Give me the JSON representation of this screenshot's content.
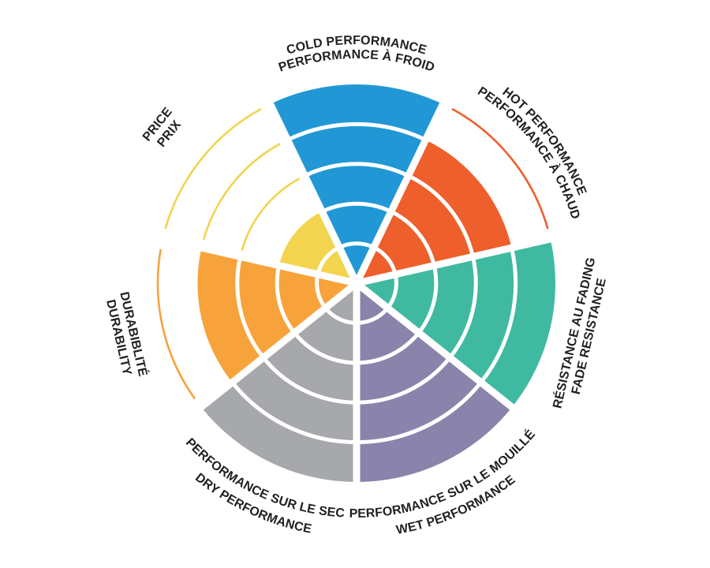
{
  "page": {
    "background": "#FFFFFF"
  },
  "chart_data": {
    "type": "polar-sector-rating-wheel",
    "title": "",
    "scale_min": 0,
    "scale_max": 5,
    "rings": 5,
    "start": "top",
    "direction": "clockwise",
    "grid": "white ring dividers inside filled sectors, thin colored outline arcs for unfilled rings",
    "legend_position": "labels around wheel, French label nearest wheel, English label outermost",
    "text_color": "#231F20",
    "ring_divider_color": "#FFFFFF",
    "categories": [
      {
        "id": "cold-performance",
        "label_en": "COLD PERFORMANCE",
        "label_fr": "PERFORMANCE À FROID",
        "value": 5,
        "color": "#2198D5"
      },
      {
        "id": "hot-performance",
        "label_en": "HOT PERFORMANCE",
        "label_fr": "PERFORMANCE À CHAUD",
        "value": 4,
        "color": "#EE5F2B"
      },
      {
        "id": "fade-resistance",
        "label_en": "FADE RESISTANCE",
        "label_fr": "RÉSISTANCE AU FADING",
        "value": 5,
        "color": "#40B9A1"
      },
      {
        "id": "wet-performance",
        "label_en": "WET PERFORMANCE",
        "label_fr": "PERFORMANCE SUR LE MOUILLÉ",
        "value": 5,
        "color": "#8A83AB"
      },
      {
        "id": "dry-performance",
        "label_en": "DRY PERFORMANCE",
        "label_fr": "PERFORMANCE SUR LE SEC",
        "value": 5,
        "color": "#A6A8AB"
      },
      {
        "id": "durability",
        "label_en": "DURABILITY",
        "label_fr": "DURABIBLITÉ",
        "value": 4,
        "color": "#F8A23C"
      },
      {
        "id": "price",
        "label_en": "PRICE",
        "label_fr": "PRIX",
        "value": 2,
        "color": "#F2D44E"
      }
    ]
  }
}
